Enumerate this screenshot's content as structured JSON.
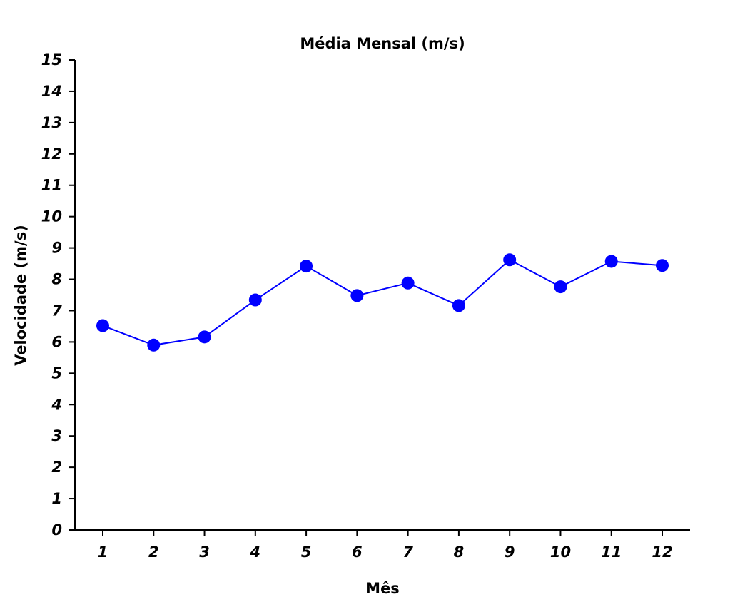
{
  "chart_data": {
    "type": "line",
    "title": "Média Mensal (m/s)",
    "xlabel": "Mês",
    "ylabel": "Velocidade (m/s)",
    "categories": [
      "1",
      "2",
      "3",
      "4",
      "5",
      "6",
      "7",
      "8",
      "9",
      "10",
      "11",
      "12"
    ],
    "series": [
      {
        "values": [
          6.52,
          5.9,
          6.16,
          7.34,
          8.42,
          7.48,
          7.88,
          7.16,
          8.62,
          7.76,
          8.57,
          8.44
        ],
        "color": "#0000ff",
        "marker": "circle"
      }
    ],
    "ylim": [
      0,
      15
    ],
    "yticks": [
      "0",
      "1",
      "2",
      "3",
      "4",
      "5",
      "6",
      "7",
      "8",
      "9",
      "10",
      "11",
      "12",
      "13",
      "14",
      "15"
    ],
    "grid": false,
    "legend": "none"
  }
}
